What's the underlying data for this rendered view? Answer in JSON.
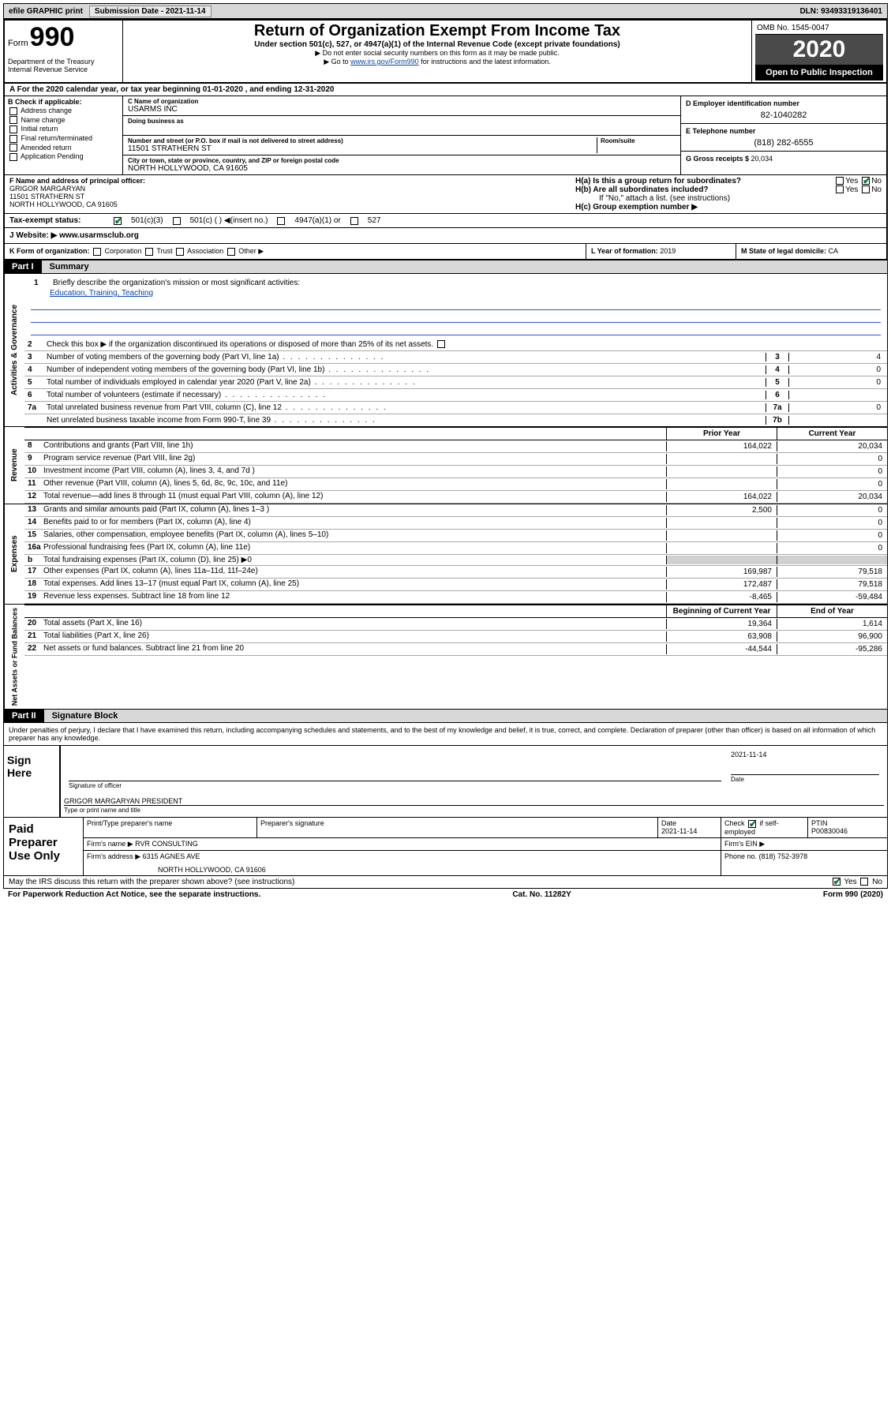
{
  "toolbar": {
    "efile_label": "efile GRAPHIC print",
    "sub_label_pre": "Submission Date - ",
    "sub_date": "2021-11-14",
    "dln_label": "DLN: ",
    "dln": "93493319136401"
  },
  "header": {
    "form_word": "Form",
    "form_num": "990",
    "dept": "Department of the Treasury\nInternal Revenue Service",
    "title": "Return of Organization Exempt From Income Tax",
    "subtitle": "Under section 501(c), 527, or 4947(a)(1) of the Internal Revenue Code (except private foundations)",
    "note1": "▶ Do not enter social security numbers on this form as it may be made public.",
    "note2_pre": "▶ Go to ",
    "note2_link": "www.irs.gov/Form990",
    "note2_post": " for instructions and the latest information.",
    "omb": "OMB No. 1545-0047",
    "year": "2020",
    "open_pub": "Open to Public Inspection"
  },
  "row_a": "A  For the 2020 calendar year, or tax year beginning 01-01-2020    , and ending 12-31-2020",
  "section_b": {
    "label": "B Check if applicable:",
    "opts": [
      "Address change",
      "Name change",
      "Initial return",
      "Final return/terminated",
      "Amended return",
      "Application Pending"
    ]
  },
  "section_c": {
    "name_lbl": "C Name of organization",
    "name": "USARMS INC",
    "dba_lbl": "Doing business as",
    "addr_lbl": "Number and street (or P.O. box if mail is not delivered to street address)",
    "room_lbl": "Room/suite",
    "street": "11501 STRATHERN ST",
    "city_lbl": "City or town, state or province, country, and ZIP or foreign postal code",
    "city": "NORTH HOLLYWOOD, CA  91605"
  },
  "section_d": {
    "lbl": "D Employer identification number",
    "val": "82-1040282"
  },
  "section_e": {
    "lbl": "E Telephone number",
    "val": "(818) 282-6555"
  },
  "section_g": {
    "lbl": "G Gross receipts $ ",
    "val": "20,034"
  },
  "section_f": {
    "lbl": "F Name and address of principal officer:",
    "name": "GRIGOR MARGARYAN",
    "street": "11501 STRATHERN ST",
    "city": "NORTH HOLLYWOOD, CA  91605"
  },
  "section_h": {
    "ha_lbl": "H(a)  Is this a group return for subordinates?",
    "ha_yes": "Yes",
    "ha_no": "No",
    "hb_lbl": "H(b)  Are all subordinates included?",
    "hb_yes": "Yes",
    "hb_no": "No",
    "hb_note": "If \"No,\" attach a list. (see instructions)",
    "hc_lbl": "H(c)  Group exemption number ▶"
  },
  "row_i": {
    "lbl": "Tax-exempt status:",
    "opt1": "501(c)(3)",
    "opt2": "501(c) (  ) ◀(insert no.)",
    "opt3": "4947(a)(1) or",
    "opt4": "527"
  },
  "row_j": {
    "lbl": "J  Website: ▶  ",
    "val": "www.usarmsclub.org"
  },
  "row_k": {
    "lbl": "K Form of organization:",
    "opts": [
      "Corporation",
      "Trust",
      "Association",
      "Other ▶"
    ],
    "l_lbl": "L Year of formation: ",
    "l_val": "2019",
    "m_lbl": "M State of legal domicile: ",
    "m_val": "CA"
  },
  "part1": {
    "tab": "Part I",
    "title": "Summary"
  },
  "gov": {
    "vert": "Activities & Governance",
    "q1_lbl": "Briefly describe the organization's mission or most significant activities:",
    "q1_val": "Education, Training, Teaching",
    "q2_lbl": "Check this box ▶        if the organization discontinued its operations or disposed of more than 25% of its net assets.",
    "q3_lbl": "Number of voting members of the governing body (Part VI, line 1a)",
    "q4_lbl": "Number of independent voting members of the governing body (Part VI, line 1b)",
    "q5_lbl": "Total number of individuals employed in calendar year 2020 (Part V, line 2a)",
    "q6_lbl": "Total number of volunteers (estimate if necessary)",
    "q7a_lbl": "Total unrelated business revenue from Part VIII, column (C), line 12",
    "q7b_lbl": "Net unrelated business taxable income from Form 990-T, line 39",
    "q3_box": "3",
    "q3_val": "4",
    "q4_box": "4",
    "q4_val": "0",
    "q5_box": "5",
    "q5_val": "0",
    "q6_box": "6",
    "q6_val": "",
    "q7a_box": "7a",
    "q7a_val": "0",
    "q7b_box": "7b",
    "q7b_val": ""
  },
  "fin_hdr": {
    "prior": "Prior Year",
    "current": "Current Year"
  },
  "rev": {
    "vert": "Revenue",
    "rows": [
      {
        "n": "8",
        "t": "Contributions and grants (Part VIII, line 1h)",
        "p": "164,022",
        "c": "20,034"
      },
      {
        "n": "9",
        "t": "Program service revenue (Part VIII, line 2g)",
        "p": "",
        "c": "0"
      },
      {
        "n": "10",
        "t": "Investment income (Part VIII, column (A), lines 3, 4, and 7d )",
        "p": "",
        "c": "0"
      },
      {
        "n": "11",
        "t": "Other revenue (Part VIII, column (A), lines 5, 6d, 8c, 9c, 10c, and 11e)",
        "p": "",
        "c": "0"
      },
      {
        "n": "12",
        "t": "Total revenue—add lines 8 through 11 (must equal Part VIII, column (A), line 12)",
        "p": "164,022",
        "c": "20,034"
      }
    ]
  },
  "exp": {
    "vert": "Expenses",
    "rows": [
      {
        "n": "13",
        "t": "Grants and similar amounts paid (Part IX, column (A), lines 1–3 )",
        "p": "2,500",
        "c": "0"
      },
      {
        "n": "14",
        "t": "Benefits paid to or for members (Part IX, column (A), line 4)",
        "p": "",
        "c": "0"
      },
      {
        "n": "15",
        "t": "Salaries, other compensation, employee benefits (Part IX, column (A), lines 5–10)",
        "p": "",
        "c": "0"
      },
      {
        "n": "16a",
        "t": "Professional fundraising fees (Part IX, column (A), line 11e)",
        "p": "",
        "c": "0"
      },
      {
        "n": "b",
        "t": "Total fundraising expenses (Part IX, column (D), line 25) ▶0",
        "p": "SHADE",
        "c": "SHADE"
      },
      {
        "n": "17",
        "t": "Other expenses (Part IX, column (A), lines 11a–11d, 11f–24e)",
        "p": "169,987",
        "c": "79,518"
      },
      {
        "n": "18",
        "t": "Total expenses. Add lines 13–17 (must equal Part IX, column (A), line 25)",
        "p": "172,487",
        "c": "79,518"
      },
      {
        "n": "19",
        "t": "Revenue less expenses. Subtract line 18 from line 12",
        "p": "-8,465",
        "c": "-59,484"
      }
    ]
  },
  "net_hdr": {
    "prior": "Beginning of Current Year",
    "current": "End of Year"
  },
  "net": {
    "vert": "Net Assets or Fund Balances",
    "rows": [
      {
        "n": "20",
        "t": "Total assets (Part X, line 16)",
        "p": "19,364",
        "c": "1,614"
      },
      {
        "n": "21",
        "t": "Total liabilities (Part X, line 26)",
        "p": "63,908",
        "c": "96,900"
      },
      {
        "n": "22",
        "t": "Net assets or fund balances. Subtract line 21 from line 20",
        "p": "-44,544",
        "c": "-95,286"
      }
    ]
  },
  "part2": {
    "tab": "Part II",
    "title": "Signature Block"
  },
  "sig_decl": "Under penalties of perjury, I declare that I have examined this return, including accompanying schedules and statements, and to the best of my knowledge and belief, it is true, correct, and complete. Declaration of preparer (other than officer) is based on all information of which preparer has any knowledge.",
  "sign_here": {
    "side": "Sign Here",
    "sig_lbl": "Signature of officer",
    "date": "2021-11-14",
    "date_lbl": "Date",
    "name": "GRIGOR MARGARYAN  PRESIDENT",
    "name_lbl": "Type or print name and title"
  },
  "prep": {
    "side": "Paid Preparer Use Only",
    "r1": {
      "c1_lbl": "Print/Type preparer's name",
      "c1_val": "",
      "c2_lbl": "Preparer's signature",
      "c2_val": "",
      "c3_lbl": "Date",
      "c3_val": "2021-11-14",
      "c4_lbl": "Check        if self-employed",
      "c4_checked": true,
      "c5_lbl": "PTIN",
      "c5_val": "P00830046"
    },
    "r2": {
      "c1_lbl": "Firm's name    ▶ ",
      "c1_val": "RVR CONSULTING",
      "c2_lbl": "Firm's EIN ▶",
      "c2_val": ""
    },
    "r3": {
      "c1_lbl": "Firm's address ▶ ",
      "c1_val": "6315 AGNES AVE",
      "c1_val2": "NORTH HOLLYWOOD, CA  91606",
      "c2_lbl": "Phone no. ",
      "c2_val": "(818) 752-3978"
    }
  },
  "prep_foot": {
    "q": "May the IRS discuss this return with the preparer shown above? (see instructions)",
    "yes": "Yes",
    "no": "No"
  },
  "footer": {
    "left": "For Paperwork Reduction Act Notice, see the separate instructions.",
    "mid": "Cat. No. 11282Y",
    "right_pre": "Form ",
    "right_form": "990",
    "right_post": " (2020)"
  },
  "colors": {
    "link": "#0645ad",
    "check": "#0a6b2e",
    "gray_bg": "#d8d8d8",
    "dark": "#000000"
  }
}
